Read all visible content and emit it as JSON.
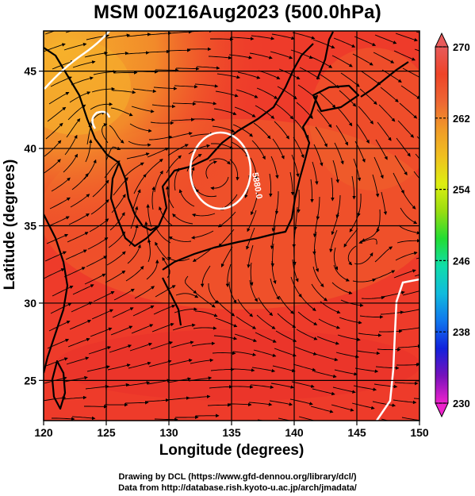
{
  "title": "MSM 00Z16Aug2023 (500.0hPa)",
  "x_axis": {
    "label": "Longitude (degrees)",
    "ticks": [
      "120",
      "125",
      "130",
      "135",
      "140",
      "145",
      "150"
    ],
    "range": [
      120,
      150
    ]
  },
  "y_axis": {
    "label": "Latitude  (degrees)",
    "ticks": [
      "25",
      "30",
      "35",
      "40",
      "45"
    ],
    "range": [
      22.4,
      47.6
    ]
  },
  "colorbar": {
    "ticks": [
      "270",
      "262",
      "254",
      "246",
      "238",
      "230"
    ],
    "range": [
      230,
      270
    ],
    "colors": [
      "#ee22cc",
      "#7711bb",
      "#1122dd",
      "#1177ee",
      "#11bbdd",
      "#11ddaa",
      "#22dd33",
      "#99dd11",
      "#ddee11",
      "#f0c020",
      "#f09a28",
      "#ee6633",
      "#ee4428",
      "#e85a5a"
    ]
  },
  "contour_label": "5880.0",
  "field_colors": {
    "warm": "#ee3b2a",
    "mid": "#f06a2a",
    "cool": "#f5b12c",
    "land": "#000000",
    "contour": "#ffffff"
  },
  "credits": {
    "line1": "Drawing by DCL (https://www.gfd-dennou.org/library/dcl/)",
    "line2": "Data from http://database.rish.kyoto-u.ac.jp/arch/jmadata/"
  }
}
